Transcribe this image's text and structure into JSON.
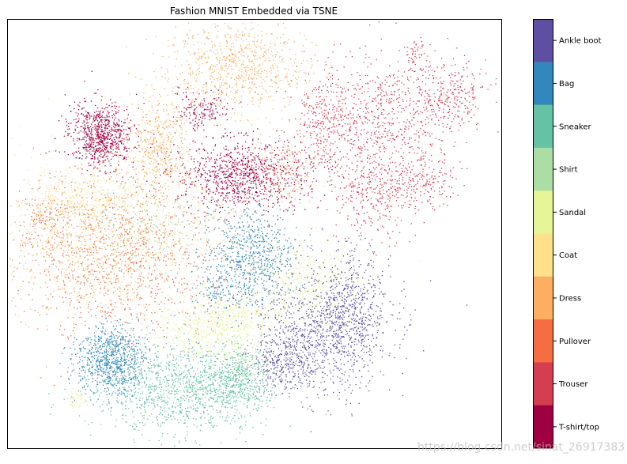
{
  "chart_data": {
    "type": "scatter",
    "title": "Fashion MNIST Embedded via TSNE",
    "xlabel": "",
    "ylabel": "",
    "axis_ticks_visible": false,
    "colormap": "Spectral",
    "colorbar": {
      "position": "right",
      "categories": [
        "T-shirt/top",
        "Trouser",
        "Pullover",
        "Dress",
        "Coat",
        "Sandal",
        "Shirt",
        "Sneaker",
        "Bag",
        "Ankle boot"
      ],
      "colors": [
        "#9e0142",
        "#d53e4f",
        "#f46d43",
        "#fdae61",
        "#fee08b",
        "#e6f598",
        "#abdda4",
        "#66c2a5",
        "#3288bd",
        "#5e4fa2"
      ]
    },
    "series": [
      {
        "name": "T-shirt/top",
        "color": "#9e0142"
      },
      {
        "name": "Trouser",
        "color": "#d53e4f"
      },
      {
        "name": "Pullover",
        "color": "#f46d43"
      },
      {
        "name": "Dress",
        "color": "#fdae61"
      },
      {
        "name": "Coat",
        "color": "#fee08b"
      },
      {
        "name": "Sandal",
        "color": "#e6f598"
      },
      {
        "name": "Shirt",
        "color": "#abdda4"
      },
      {
        "name": "Sneaker",
        "color": "#66c2a5"
      },
      {
        "name": "Bag",
        "color": "#3288bd"
      },
      {
        "name": "Ankle boot",
        "color": "#5e4fa2"
      }
    ]
  },
  "watermark": "https://blog.csdn.net/sinat_26917383"
}
